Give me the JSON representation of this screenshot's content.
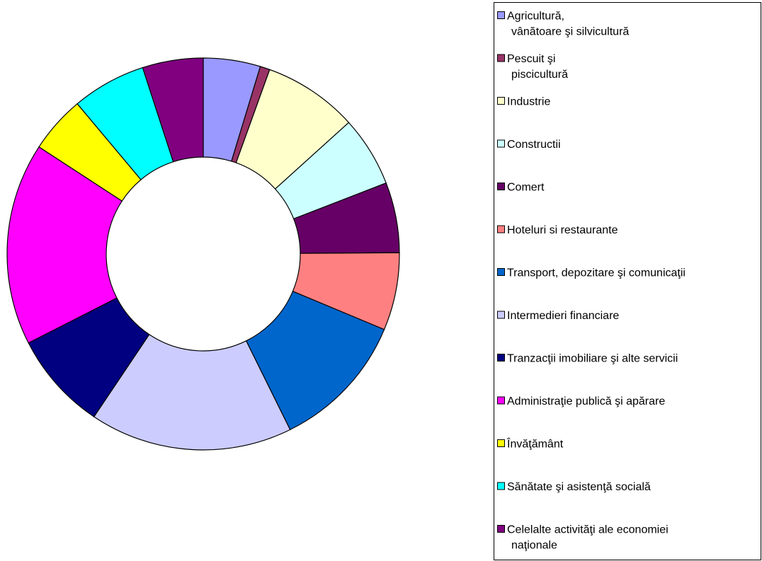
{
  "chart_data": {
    "type": "donut",
    "categories": [
      "Agricultură,\nvânătoare şi silvicultură",
      "Pescuit şi\npiscicultură",
      "Industrie",
      "Constructii",
      "Comert",
      "Hoteluri si restaurante",
      "Transport, depozitare şi comunicaţii",
      "Intermedieri financiare",
      "Tranzacţii imobiliare şi alte servicii",
      "Administraţie publică şi apărare",
      "Învăţământ",
      "Sănătate şi asistenţă socială",
      "Celelalte activităţi ale economiei\nnaţionale"
    ],
    "values": [
      4.7,
      0.8,
      7.8,
      5.8,
      5.8,
      6.4,
      11.4,
      16.7,
      8.1,
      16.7,
      4.7,
      6.1,
      5.0
    ],
    "colors": [
      "#9999ff",
      "#993366",
      "#ffffcc",
      "#ccffff",
      "#660066",
      "#ff8080",
      "#0066cc",
      "#ccccff",
      "#000080",
      "#ff00ff",
      "#ffff00",
      "#00ffff",
      "#800080"
    ],
    "legend": "right"
  }
}
